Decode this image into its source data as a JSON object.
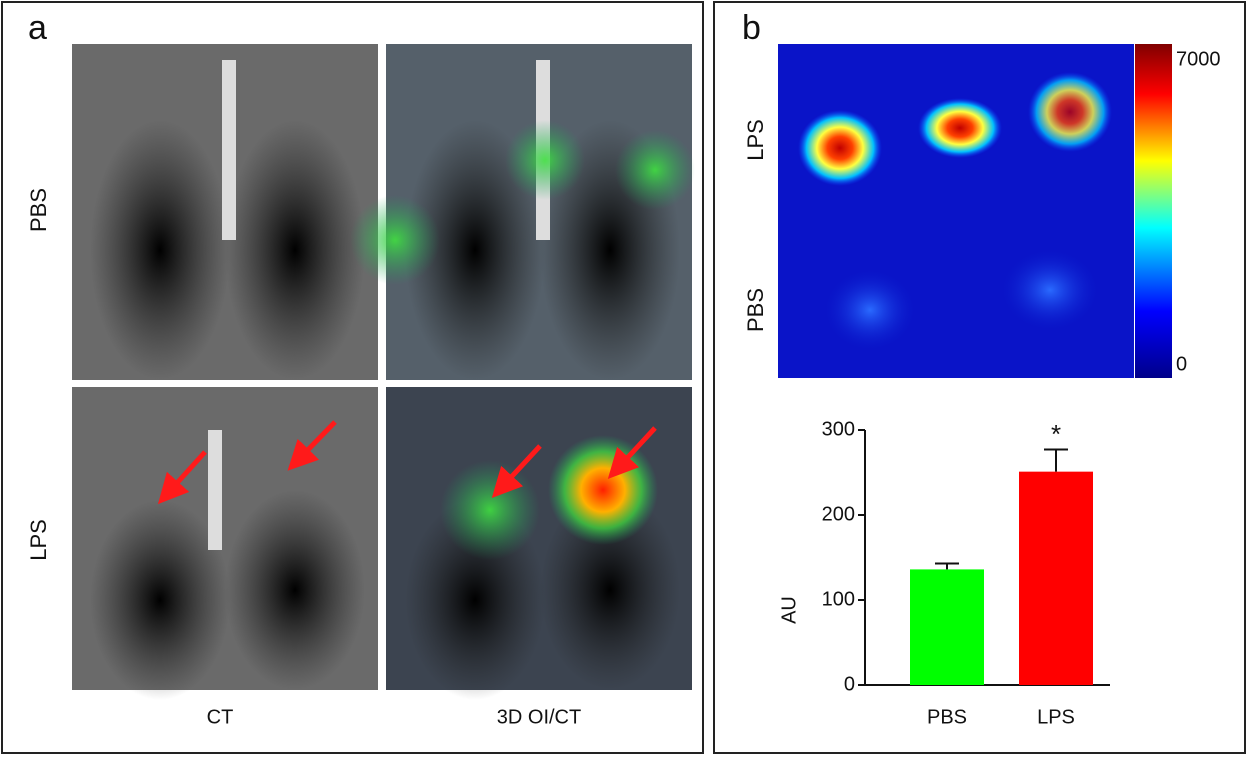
{
  "panel_a": {
    "label": "a",
    "rows": [
      "PBS",
      "LPS"
    ],
    "columns": [
      "CT",
      "3D OI/CT"
    ]
  },
  "panel_b": {
    "label": "b",
    "image_rows": [
      "LPS",
      "PBS"
    ],
    "colorbar_ticks": [
      0,
      7000
    ]
  },
  "chart_data": {
    "type": "bar",
    "categories": [
      "PBS",
      "LPS"
    ],
    "values": [
      136,
      251
    ],
    "errors": [
      7,
      26
    ],
    "colors": [
      "#00ff00",
      "#ff0000"
    ],
    "ylabel": "AU",
    "annotation": "*",
    "ylim": [
      0,
      300
    ],
    "yticks": [
      0,
      100,
      200,
      300
    ]
  }
}
